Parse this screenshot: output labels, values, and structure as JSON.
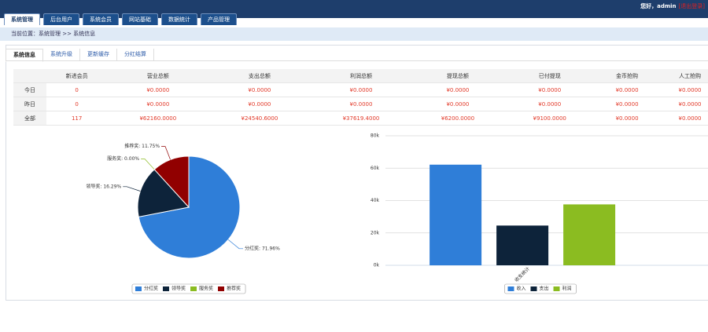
{
  "header": {
    "greeting": "您好，admin",
    "logout": "[退出登录]"
  },
  "nav": [
    "系统管理",
    "后台用户",
    "系统会员",
    "网站基础",
    "数据统计",
    "产品管理"
  ],
  "breadcrumb": "当前位置：系统管理 >> 系统信息",
  "tabs": [
    "系统信息",
    "系统升级",
    "更新缓存",
    "分红结算"
  ],
  "table": {
    "header": [
      "新进会员",
      "营业总额",
      "支出总额",
      "利润总额",
      "提现总额",
      "已付提现",
      "金币抢购",
      "人工抢购"
    ],
    "rows": [
      [
        "今日",
        "0",
        "¥0.0000",
        "¥0.0000",
        "¥0.0000",
        "¥0.0000",
        "¥0.0000",
        "¥0.0000",
        "¥0.0000"
      ],
      [
        "昨日",
        "0",
        "¥0.0000",
        "¥0.0000",
        "¥0.0000",
        "¥0.0000",
        "¥0.0000",
        "¥0.0000",
        "¥0.0000"
      ],
      [
        "全部",
        "117",
        "¥62160.0000",
        "¥24540.6000",
        "¥37619.4000",
        "¥6200.0000",
        "¥9100.0000",
        "¥0.0000",
        "¥0.0000"
      ]
    ]
  },
  "chart_data": [
    {
      "type": "pie",
      "categories": [
        "分红奖",
        "领导奖",
        "服务奖",
        "推荐奖"
      ],
      "values": [
        71.96,
        16.29,
        0,
        11.75
      ],
      "value_labels": [
        "分红奖: 71.96%",
        "领导奖: 16.29%",
        "服务奖: 0.00%",
        "推荐奖: 11.75%"
      ],
      "colors": [
        "#2f7ed8",
        "#0d233a",
        "#8bbc21",
        "#910000"
      ],
      "legend": "bottom"
    },
    {
      "type": "bar",
      "categories": [
        "收支统计"
      ],
      "series": [
        {
          "name": "收入",
          "color": "#2f7ed8",
          "values": [
            62160
          ]
        },
        {
          "name": "支出",
          "color": "#0d233a",
          "values": [
            24540.6
          ]
        },
        {
          "name": "利润",
          "color": "#8bbc21",
          "values": [
            37619.4
          ]
        }
      ],
      "ylim": [
        0,
        80000
      ],
      "yticks": [
        {
          "value": 0,
          "label": "0k"
        },
        {
          "value": 20000,
          "label": "20k"
        },
        {
          "value": 40000,
          "label": "40k"
        },
        {
          "value": 60000,
          "label": "60k"
        },
        {
          "value": 80000,
          "label": "80k"
        }
      ],
      "grid": true,
      "legend": "bottom"
    }
  ]
}
